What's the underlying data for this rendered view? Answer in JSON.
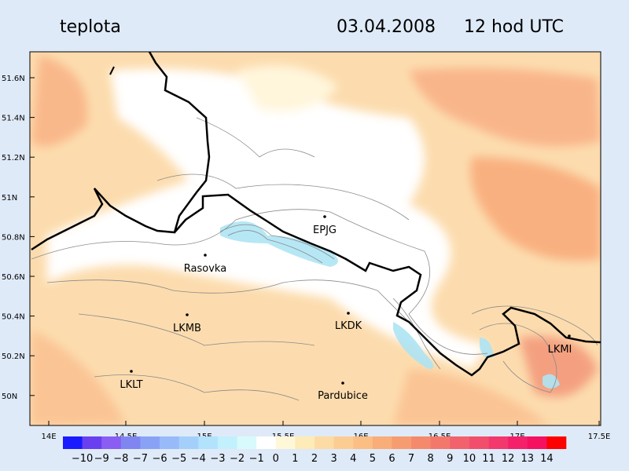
{
  "header": {
    "title": "teplota",
    "date": "03.04.2008",
    "time": "12 hod UTC"
  },
  "lat_labels": [
    "51.6N",
    "51.4N",
    "51.2N",
    "51N",
    "50.8N",
    "50.6N",
    "50.4N",
    "50.2N",
    "50N"
  ],
  "lon_labels": [
    "14E",
    "14.5E",
    "15E",
    "15.5E",
    "16E",
    "16.5E",
    "17E",
    "17.5E"
  ],
  "stations": [
    "EPJG",
    "Rasovka",
    "LKMB",
    "LKDK",
    "LKMI",
    "LKLT",
    "Pardubice"
  ],
  "legend": {
    "labels": [
      "−10",
      "−9",
      "−8",
      "−7",
      "−6",
      "−5",
      "−4",
      "−3",
      "−2",
      "−1",
      "0",
      "1",
      "2",
      "3",
      "4",
      "5",
      "6",
      "7",
      "8",
      "9",
      "10",
      "11",
      "12",
      "13",
      "14"
    ],
    "colors": [
      "#1a1aff",
      "#6a3ff0",
      "#8a5ef2",
      "#7f86f2",
      "#8aa2f6",
      "#98baf8",
      "#a4cffa",
      "#b2e2fc",
      "#c2f0fc",
      "#d8fafc",
      "#ffffff",
      "#fff8d8",
      "#fdebb8",
      "#fcdca4",
      "#fccd92",
      "#fbbe84",
      "#f9ad78",
      "#f79c70",
      "#f5896c",
      "#f4776c",
      "#f2626c",
      "#f24e6c",
      "#f2386c",
      "#f4206a",
      "#f51060",
      "#ff0000"
    ]
  }
}
